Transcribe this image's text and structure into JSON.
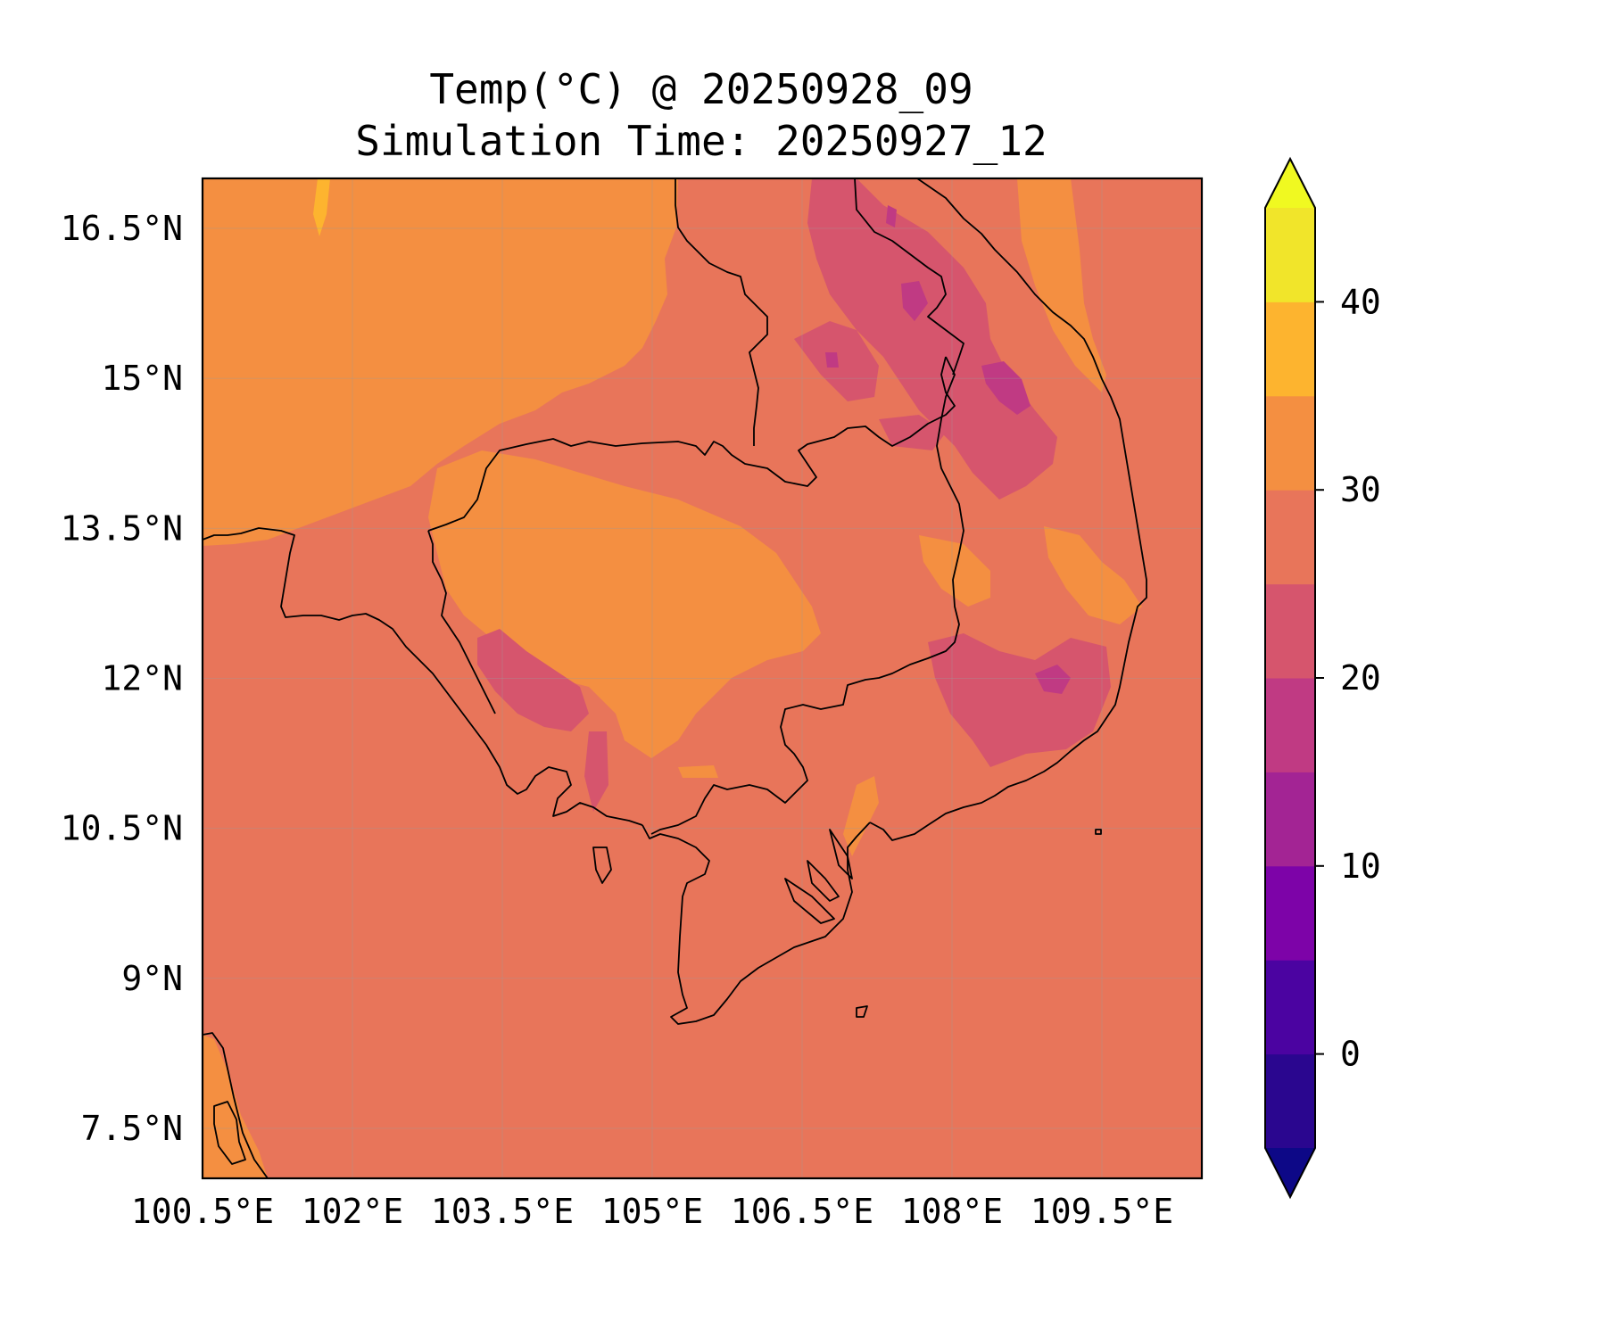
{
  "title": {
    "line1": "Temp(°C) @ 20250928_09",
    "line2": "Simulation Time: 20250927_12"
  },
  "map": {
    "variable": "Temperature",
    "unit": "°C",
    "lon_range": [
      100.5,
      110.5
    ],
    "lat_range": [
      7.0,
      17.0
    ],
    "x_ticks": [
      {
        "value": 100.5,
        "label": "100.5°E"
      },
      {
        "value": 102.0,
        "label": "102°E"
      },
      {
        "value": 103.5,
        "label": "103.5°E"
      },
      {
        "value": 105.0,
        "label": "105°E"
      },
      {
        "value": 106.5,
        "label": "106.5°E"
      },
      {
        "value": 108.0,
        "label": "108°E"
      },
      {
        "value": 109.5,
        "label": "109.5°E"
      }
    ],
    "y_ticks": [
      {
        "value": 7.5,
        "label": "7.5°N"
      },
      {
        "value": 9.0,
        "label": "9°N"
      },
      {
        "value": 10.5,
        "label": "10.5°N"
      },
      {
        "value": 12.0,
        "label": "12°N"
      },
      {
        "value": 13.5,
        "label": "13.5°N"
      },
      {
        "value": 15.0,
        "label": "15°N"
      },
      {
        "value": 16.5,
        "label": "16.5°N"
      }
    ],
    "gridlines": true,
    "coastlines_and_borders": true,
    "background_level_color": "#e8755a"
  },
  "colorbar": {
    "min": -5,
    "max": 45,
    "extend": "both",
    "bins": [
      {
        "from": -5,
        "to": 0,
        "color": "#2a068f"
      },
      {
        "from": 0,
        "to": 5,
        "color": "#4b03a1"
      },
      {
        "from": 5,
        "to": 10,
        "color": "#7d03a8"
      },
      {
        "from": 10,
        "to": 15,
        "color": "#a32494"
      },
      {
        "from": 15,
        "to": 20,
        "color": "#c03a83"
      },
      {
        "from": 20,
        "to": 25,
        "color": "#d6556d"
      },
      {
        "from": 25,
        "to": 30,
        "color": "#e8755a"
      },
      {
        "from": 30,
        "to": 35,
        "color": "#f48f41"
      },
      {
        "from": 35,
        "to": 40,
        "color": "#fdb42f"
      },
      {
        "from": 40,
        "to": 45,
        "color": "#f1e52a"
      }
    ],
    "under_color": "#0d0887",
    "over_color": "#f0f921",
    "ticks": [
      {
        "value": 0,
        "label": "0"
      },
      {
        "value": 10,
        "label": "10"
      },
      {
        "value": 20,
        "label": "20"
      },
      {
        "value": 30,
        "label": "30"
      },
      {
        "value": 40,
        "label": "40"
      }
    ]
  }
}
